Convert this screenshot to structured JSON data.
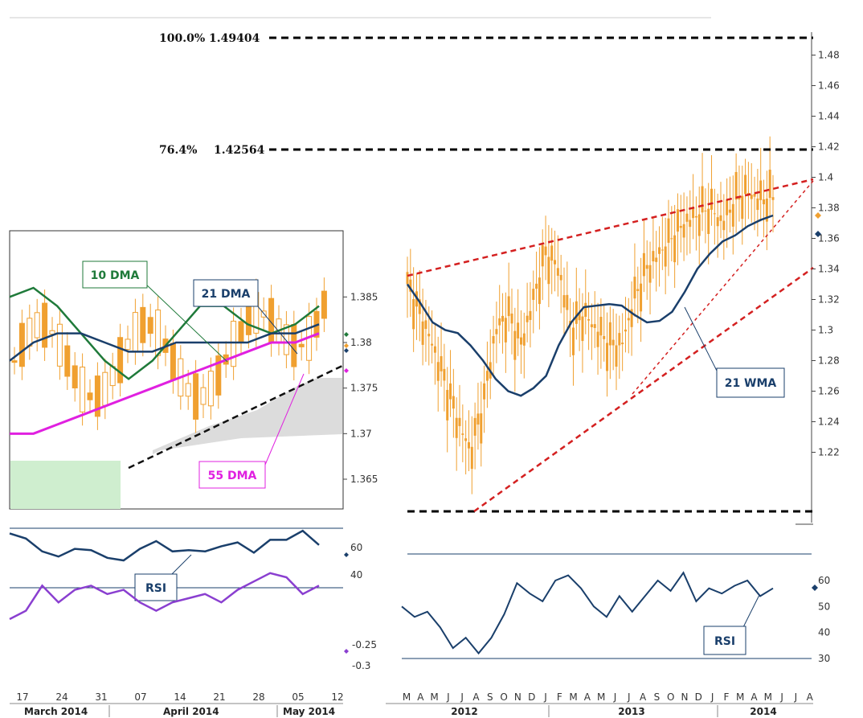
{
  "chart_data": [
    {
      "type": "line",
      "panel": "main (weekly candlestick)",
      "title": "",
      "xlabel": "",
      "ylabel": "",
      "y_ticks": [
        1.22,
        1.24,
        1.26,
        1.28,
        1.3,
        1.32,
        1.34,
        1.36,
        1.38,
        1.4,
        1.42,
        1.44,
        1.46,
        1.48
      ],
      "y_tick_labels": [
        "1.22",
        "1.24",
        "1.26",
        "1.28",
        "1.3",
        "1.32",
        "1.34",
        "1.36",
        "1.38",
        "1.4",
        "1.42",
        "1.44",
        "1.46",
        "1.48"
      ],
      "ylim": [
        1.195,
        1.5
      ],
      "x_month_labels": [
        "M",
        "A",
        "M",
        "J",
        "J",
        "A",
        "S",
        "O",
        "N",
        "D",
        "J",
        "F",
        "M",
        "A",
        "M",
        "J",
        "J",
        "A",
        "S",
        "O",
        "N",
        "D",
        "J",
        "F",
        "M",
        "A",
        "M",
        "J",
        "J",
        "A"
      ],
      "x_year_labels": [
        "2012",
        "2013",
        "2014"
      ],
      "fib_levels": [
        {
          "label": "100.0% 1.49404",
          "value": 1.49404
        },
        {
          "label": "76.4%   1.42564",
          "value": 1.42564
        },
        {
          "label": "",
          "value": 1.205
        }
      ],
      "series": [
        {
          "name": "21 WMA",
          "color": "#1a3f6b",
          "values": [
            1.33,
            1.318,
            1.305,
            1.3,
            1.298,
            1.29,
            1.28,
            1.268,
            1.26,
            1.257,
            1.262,
            1.27,
            1.29,
            1.305,
            1.315,
            1.316,
            1.317,
            1.316,
            1.31,
            1.305,
            1.306,
            1.312,
            1.325,
            1.34,
            1.35,
            1.358,
            1.362,
            1.368,
            1.372,
            1.375
          ]
        },
        {
          "name": "close",
          "color": "#f0a030",
          "values": [
            1.33,
            1.31,
            1.29,
            1.265,
            1.24,
            1.22,
            1.25,
            1.3,
            1.31,
            1.29,
            1.32,
            1.35,
            1.34,
            1.3,
            1.31,
            1.3,
            1.29,
            1.29,
            1.32,
            1.34,
            1.35,
            1.36,
            1.37,
            1.375,
            1.38,
            1.37,
            1.385,
            1.39,
            1.385,
            1.387
          ]
        }
      ],
      "annotations": [
        "21 WMA"
      ]
    },
    {
      "type": "line",
      "panel": "inset (daily candlestick)",
      "y_ticks": [
        1.365,
        1.37,
        1.375,
        1.38,
        1.385
      ],
      "y_tick_labels": [
        "1.365",
        "1.37",
        "1.375",
        "1.38",
        "1.385"
      ],
      "ylim": [
        1.362,
        1.392
      ],
      "series": [
        {
          "name": "10 DMA",
          "color": "#1f7a3a",
          "values": [
            1.385,
            1.386,
            1.384,
            1.381,
            1.378,
            1.376,
            1.378,
            1.381,
            1.384,
            1.384,
            1.382,
            1.381,
            1.382,
            1.384
          ]
        },
        {
          "name": "21 DMA",
          "color": "#1a3f6b",
          "values": [
            1.378,
            1.38,
            1.381,
            1.381,
            1.38,
            1.379,
            1.379,
            1.38,
            1.38,
            1.38,
            1.38,
            1.381,
            1.381,
            1.382
          ]
        },
        {
          "name": "55 DMA",
          "color": "#e020e0",
          "values": [
            1.37,
            1.37,
            1.371,
            1.372,
            1.373,
            1.374,
            1.375,
            1.376,
            1.377,
            1.378,
            1.379,
            1.38,
            1.38,
            1.381
          ]
        }
      ],
      "annotations": [
        "10 DMA",
        "21 DMA",
        "55 DMA"
      ]
    },
    {
      "type": "line",
      "panel": "inset RSI",
      "y_ticks": [
        40,
        60
      ],
      "y_tick_labels": [
        "40",
        "60"
      ],
      "series": [
        {
          "name": "RSI",
          "color": "#1a3f6b",
          "values": [
            62,
            58,
            48,
            44,
            50,
            49,
            43,
            41,
            50,
            56,
            48,
            49,
            48,
            52,
            55,
            47,
            57,
            57,
            64,
            53
          ]
        }
      ]
    },
    {
      "type": "line",
      "panel": "inset lower oscillator",
      "y_ticks": [
        -0.25,
        -0.3
      ],
      "y_tick_labels": [
        "-0.25",
        "-0.3"
      ],
      "series": [
        {
          "name": "",
          "color": "#8a3fd0",
          "values": [
            -0.18,
            -0.2,
            -0.26,
            -0.22,
            -0.25,
            -0.26,
            -0.24,
            -0.25,
            -0.22,
            -0.2,
            -0.22,
            -0.23,
            -0.24,
            -0.22,
            -0.25,
            -0.27,
            -0.29,
            -0.28,
            -0.24,
            -0.26
          ]
        }
      ]
    },
    {
      "type": "line",
      "panel": "weekly RSI",
      "y_ticks": [
        30,
        40,
        50,
        60
      ],
      "y_tick_labels": [
        "30",
        "40",
        "50",
        "60"
      ],
      "series": [
        {
          "name": "RSI",
          "color": "#1a3f6b",
          "values": [
            50,
            46,
            48,
            42,
            34,
            38,
            32,
            38,
            47,
            59,
            55,
            52,
            60,
            62,
            57,
            50,
            46,
            54,
            48,
            54,
            60,
            56,
            63,
            52,
            57,
            55,
            58,
            60,
            54,
            57
          ]
        }
      ]
    }
  ],
  "x_labels_inset": [
    "17",
    "24",
    "31",
    "07",
    "14",
    "21",
    "28",
    "05",
    "12"
  ],
  "month_labels_inset": [
    "March 2014",
    "April 2014",
    "May 2014"
  ],
  "labels": {
    "fib100": "100.0% 1.49404",
    "fib764": "76.4%",
    "fib764v": "1.42564",
    "dma10": "10 DMA",
    "dma21": "21 DMA",
    "dma55": "55 DMA",
    "wma21": "21 WMA",
    "rsi": "RSI"
  },
  "colors": {
    "candle": "#f0a030",
    "navy": "#1a3f6b",
    "green": "#1f7a3a",
    "magenta": "#e020e0",
    "purple": "#8a3fd0",
    "trend": "#d42020"
  }
}
